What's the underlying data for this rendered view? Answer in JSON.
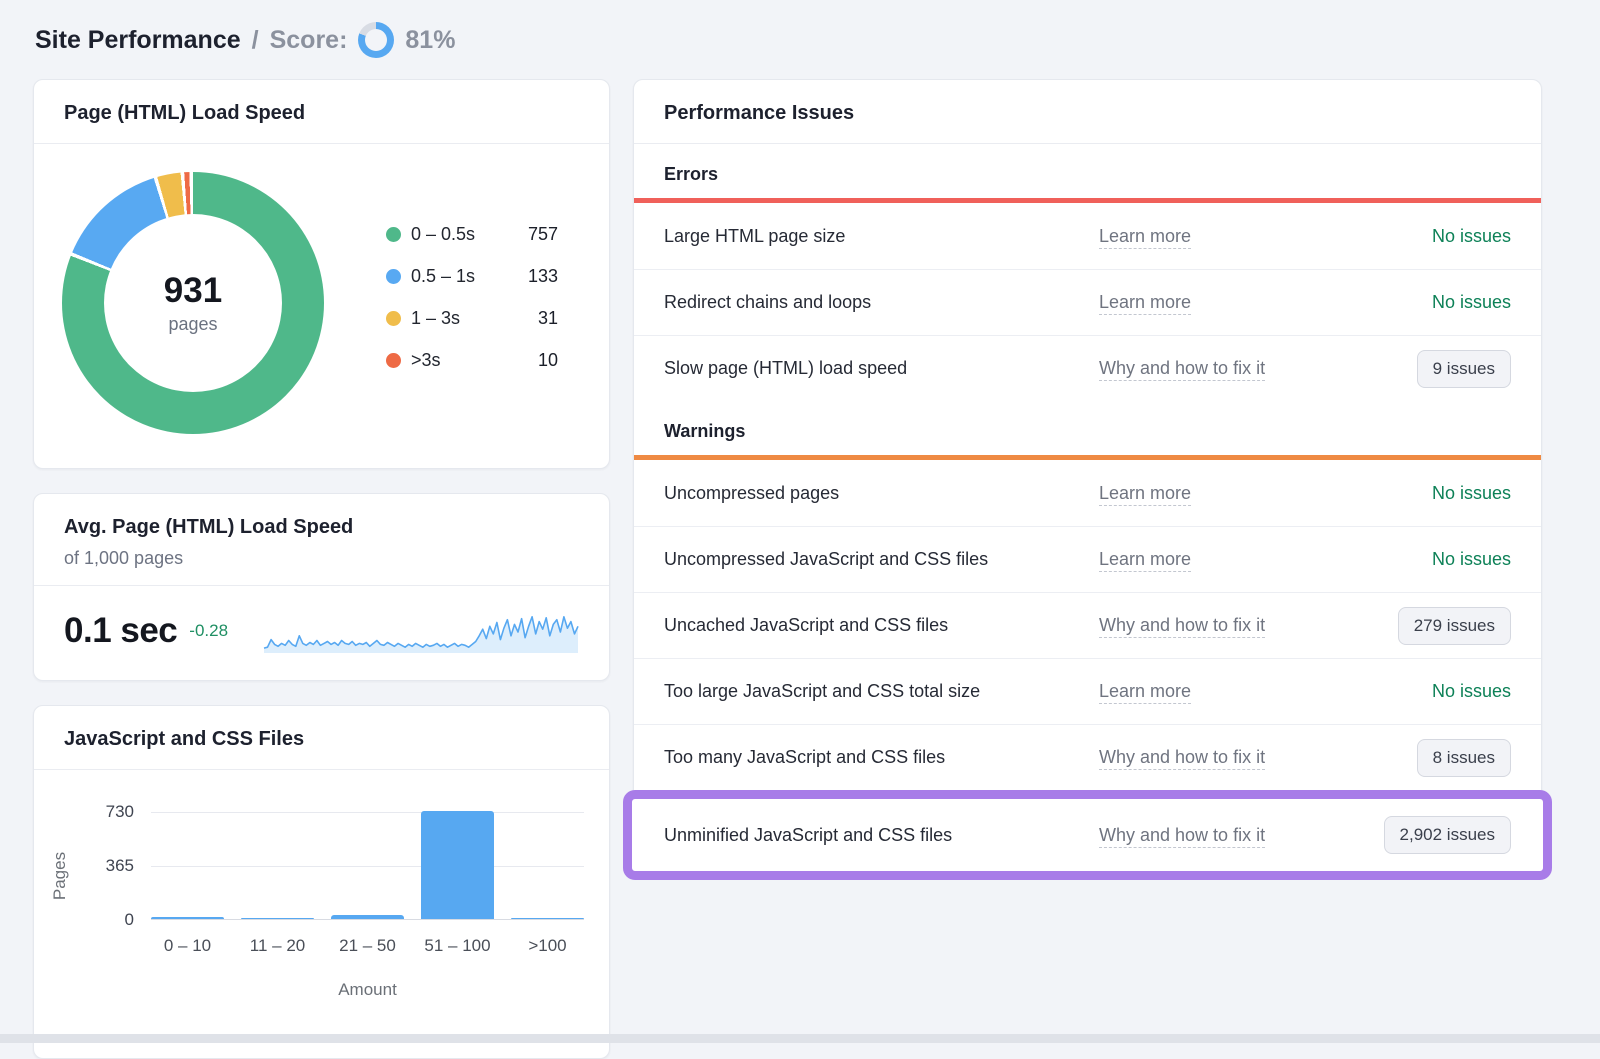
{
  "header": {
    "title": "Site Performance",
    "separator": "/",
    "score_label": "Score:",
    "score_value": "81%",
    "score_percent": 81
  },
  "colors": {
    "accent_blue": "#57a8f1",
    "ring_track": "#d8dce4",
    "status_green": "#0d8157",
    "delta_green": "#1f8f63",
    "errors_bar": "#f0605a",
    "warnings_bar": "#ef8a43",
    "highlight_purple": "#a87ce8"
  },
  "load_speed_card": {
    "title": "Page (HTML) Load Speed",
    "center_value": "931",
    "center_label": "pages",
    "chart_data": {
      "type": "pie",
      "categories": [
        "0 – 0.5s",
        "0.5 – 1s",
        "1 – 3s",
        ">3s"
      ],
      "values": [
        757,
        133,
        31,
        10
      ],
      "colors": [
        "#4fb88a",
        "#58a9f2",
        "#f0bd4b",
        "#ee6a45"
      ],
      "title": "Page (HTML) Load Speed",
      "center_total": 931,
      "legend_position": "right"
    }
  },
  "avg_card": {
    "title": "Avg. Page (HTML) Load Speed",
    "subtitle": "of 1,000 pages",
    "value": "0.1 sec",
    "delta": "-0.28",
    "chart_data": {
      "type": "area",
      "title": "Load speed trend sparkline",
      "ylim": [
        0,
        40
      ],
      "values": [
        3,
        4,
        12,
        7,
        5,
        8,
        6,
        11,
        7,
        5,
        16,
        8,
        6,
        9,
        7,
        11,
        6,
        8,
        10,
        7,
        9,
        6,
        11,
        8,
        7,
        10,
        6,
        8,
        7,
        9,
        5,
        8,
        11,
        7,
        6,
        9,
        7,
        5,
        8,
        6,
        4,
        7,
        5,
        8,
        6,
        4,
        7,
        5,
        6,
        8,
        5,
        7,
        4,
        6,
        8,
        5,
        7,
        6,
        4,
        7,
        10,
        16,
        23,
        13,
        26,
        18,
        30,
        12,
        24,
        33,
        16,
        28,
        20,
        34,
        14,
        26,
        36,
        18,
        31,
        23,
        35,
        16,
        28,
        33,
        20,
        36,
        24,
        31,
        18,
        26
      ]
    }
  },
  "files_card": {
    "title": "JavaScript and CSS Files",
    "chart_data": {
      "type": "bar",
      "categories": [
        "0 – 10",
        "11 – 20",
        "21 – 50",
        "51 – 100",
        ">100"
      ],
      "values": [
        15,
        2,
        25,
        730,
        10
      ],
      "title": "JavaScript and CSS Files",
      "xlabel": "Amount",
      "ylabel": "Pages",
      "yticks": [
        0,
        365,
        730
      ],
      "ylim": [
        0,
        730
      ],
      "grid": true,
      "bar_color": "#57a8f1"
    }
  },
  "issues_card": {
    "title": "Performance Issues",
    "sections": [
      {
        "label": "Errors",
        "color": "#f0605a",
        "rows": [
          {
            "name": "Large HTML page size",
            "link": "Learn more",
            "status": "No issues"
          },
          {
            "name": "Redirect chains and loops",
            "link": "Learn more",
            "status": "No issues"
          },
          {
            "name": "Slow page (HTML) load speed",
            "link": "Why and how to fix it",
            "badge": "9 issues"
          }
        ]
      },
      {
        "label": "Warnings",
        "color": "#ef8a43",
        "rows": [
          {
            "name": "Uncompressed pages",
            "link": "Learn more",
            "status": "No issues"
          },
          {
            "name": "Uncompressed JavaScript and CSS files",
            "link": "Learn more",
            "status": "No issues"
          },
          {
            "name": "Uncached JavaScript and CSS files",
            "link": "Why and how to fix it",
            "badge": "279 issues"
          },
          {
            "name": "Too large JavaScript and CSS total size",
            "link": "Learn more",
            "status": "No issues"
          },
          {
            "name": "Too many JavaScript and CSS files",
            "link": "Why and how to fix it",
            "badge": "8 issues"
          },
          {
            "name": "Unminified JavaScript and CSS files",
            "link": "Why and how to fix it",
            "badge": "2,902 issues",
            "highlighted": true
          }
        ]
      }
    ]
  }
}
